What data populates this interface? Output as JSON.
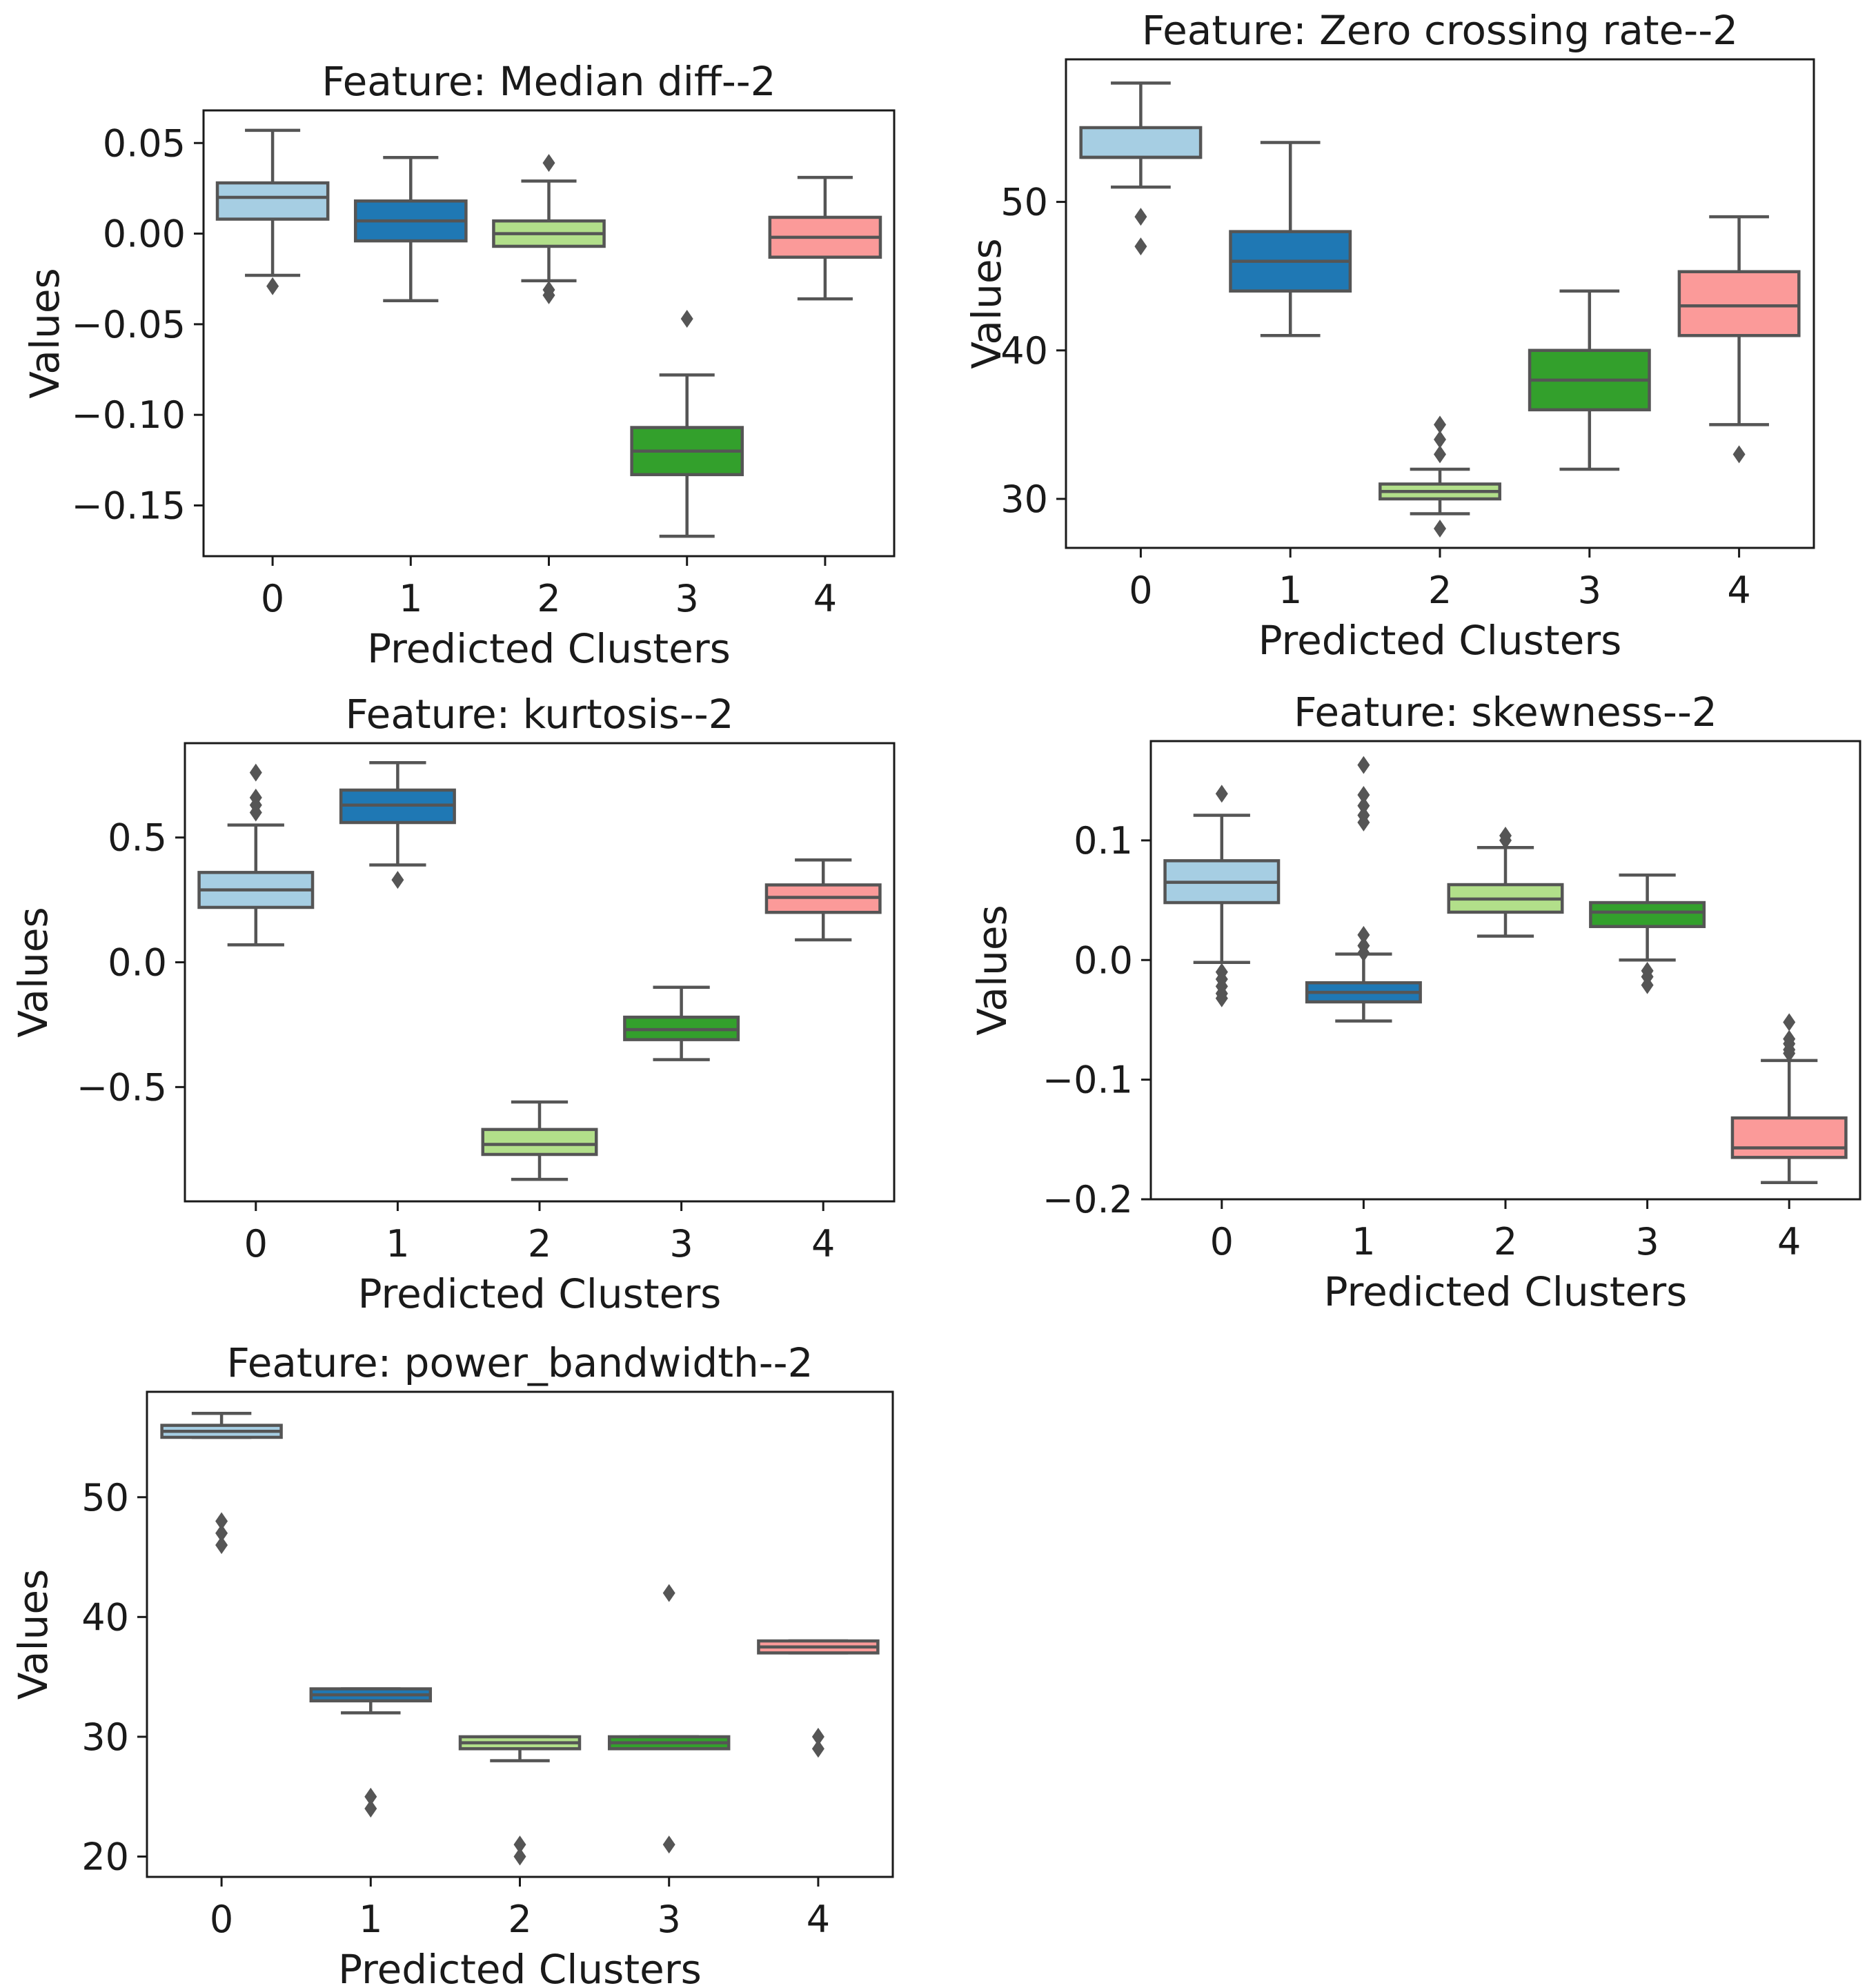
{
  "chart_data": [
    {
      "type": "box",
      "title": "Feature: Median diff--2",
      "xlabel": "Predicted Clusters",
      "ylabel": "Values",
      "categories": [
        "0",
        "1",
        "2",
        "3",
        "4"
      ],
      "yticks": [
        0.05,
        0.0,
        -0.05,
        -0.1,
        -0.15
      ],
      "ytick_labels": [
        "0.05",
        "0.00",
        "−0.05",
        "−0.10",
        "−0.15"
      ],
      "ylim": [
        -0.178,
        0.068
      ],
      "boxes": [
        {
          "category": "0",
          "whisker_low": -0.023,
          "q1": 0.008,
          "median": 0.02,
          "q3": 0.028,
          "whisker_high": 0.057,
          "outliers": [
            -0.029
          ]
        },
        {
          "category": "1",
          "whisker_low": -0.037,
          "q1": -0.004,
          "median": 0.007,
          "q3": 0.018,
          "whisker_high": 0.042,
          "outliers": []
        },
        {
          "category": "2",
          "whisker_low": -0.026,
          "q1": -0.007,
          "median": 0.0,
          "q3": 0.007,
          "whisker_high": 0.029,
          "outliers": [
            0.039,
            -0.031,
            -0.034
          ]
        },
        {
          "category": "3",
          "whisker_low": -0.167,
          "q1": -0.133,
          "median": -0.12,
          "q3": -0.107,
          "whisker_high": -0.078,
          "outliers": [
            -0.047
          ]
        },
        {
          "category": "4",
          "whisker_low": -0.036,
          "q1": -0.013,
          "median": -0.002,
          "q3": 0.009,
          "whisker_high": 0.031,
          "outliers": []
        }
      ]
    },
    {
      "type": "box",
      "title": "Feature: Zero crossing rate--2",
      "xlabel": "Predicted Clusters",
      "ylabel": "Values",
      "categories": [
        "0",
        "1",
        "2",
        "3",
        "4"
      ],
      "yticks": [
        50,
        40,
        30
      ],
      "ytick_labels": [
        "50",
        "40",
        "30"
      ],
      "ylim": [
        26.7,
        59.6
      ],
      "boxes": [
        {
          "category": "0",
          "whisker_low": 51,
          "q1": 53,
          "median": 53,
          "q3": 55,
          "whisker_high": 58,
          "outliers": [
            49,
            47
          ]
        },
        {
          "category": "1",
          "whisker_low": 41,
          "q1": 44,
          "median": 46,
          "q3": 48,
          "whisker_high": 54,
          "outliers": []
        },
        {
          "category": "2",
          "whisker_low": 29,
          "q1": 30,
          "median": 30.5,
          "q3": 31,
          "whisker_high": 32,
          "outliers": [
            35,
            34,
            33,
            28
          ]
        },
        {
          "category": "3",
          "whisker_low": 32,
          "q1": 36,
          "median": 38,
          "q3": 40,
          "whisker_high": 44,
          "outliers": []
        },
        {
          "category": "4",
          "whisker_low": 35,
          "q1": 41,
          "median": 43,
          "q3": 45.3,
          "whisker_high": 49,
          "outliers": [
            33
          ]
        }
      ]
    },
    {
      "type": "box",
      "title": "Feature: kurtosis--2",
      "xlabel": "Predicted Clusters",
      "ylabel": "Values",
      "categories": [
        "0",
        "1",
        "2",
        "3",
        "4"
      ],
      "yticks": [
        0.5,
        0.0,
        -0.5
      ],
      "ytick_labels": [
        "0.5",
        "0.0",
        "−0.5"
      ],
      "ylim": [
        -0.958,
        0.878
      ],
      "boxes": [
        {
          "category": "0",
          "whisker_low": 0.07,
          "q1": 0.22,
          "median": 0.29,
          "q3": 0.36,
          "whisker_high": 0.55,
          "outliers": [
            0.6,
            0.63,
            0.66,
            0.76
          ]
        },
        {
          "category": "1",
          "whisker_low": 0.39,
          "q1": 0.56,
          "median": 0.63,
          "q3": 0.69,
          "whisker_high": 0.8,
          "outliers": [
            0.33
          ]
        },
        {
          "category": "2",
          "whisker_low": -0.87,
          "q1": -0.77,
          "median": -0.73,
          "q3": -0.67,
          "whisker_high": -0.56,
          "outliers": []
        },
        {
          "category": "3",
          "whisker_low": -0.39,
          "q1": -0.31,
          "median": -0.27,
          "q3": -0.22,
          "whisker_high": -0.1,
          "outliers": []
        },
        {
          "category": "4",
          "whisker_low": 0.09,
          "q1": 0.2,
          "median": 0.26,
          "q3": 0.31,
          "whisker_high": 0.41,
          "outliers": []
        }
      ]
    },
    {
      "type": "box",
      "title": "Feature: skewness--2",
      "xlabel": "Predicted Clusters",
      "ylabel": "Values",
      "categories": [
        "0",
        "1",
        "2",
        "3",
        "4"
      ],
      "yticks": [
        0.1,
        0.0,
        -0.1,
        -0.2
      ],
      "ytick_labels": [
        "0.1",
        "0.0",
        "−0.1",
        "−0.2"
      ],
      "ylim": [
        -0.2,
        0.183
      ],
      "boxes": [
        {
          "category": "0",
          "whisker_low": -0.002,
          "q1": 0.048,
          "median": 0.065,
          "q3": 0.083,
          "whisker_high": 0.121,
          "outliers": [
            0.139,
            -0.01,
            -0.016,
            -0.022,
            -0.028,
            -0.032
          ]
        },
        {
          "category": "1",
          "whisker_low": -0.051,
          "q1": -0.035,
          "median": -0.027,
          "q3": -0.019,
          "whisker_high": 0.005,
          "outliers": [
            0.163,
            0.138,
            0.129,
            0.121,
            0.115,
            0.021,
            0.012,
            0.006
          ]
        },
        {
          "category": "2",
          "whisker_low": 0.02,
          "q1": 0.04,
          "median": 0.051,
          "q3": 0.063,
          "whisker_high": 0.094,
          "outliers": [
            0.104,
            0.1
          ]
        },
        {
          "category": "3",
          "whisker_low": 0.0,
          "q1": 0.028,
          "median": 0.04,
          "q3": 0.048,
          "whisker_high": 0.071,
          "outliers": [
            -0.009,
            -0.014,
            -0.021
          ]
        },
        {
          "category": "4",
          "whisker_low": -0.186,
          "q1": -0.165,
          "median": -0.157,
          "q3": -0.132,
          "whisker_high": -0.084,
          "outliers": [
            -0.052,
            -0.066,
            -0.07,
            -0.075,
            -0.078
          ]
        }
      ]
    },
    {
      "type": "box",
      "title": "Feature: power_bandwidth--2",
      "xlabel": "Predicted Clusters",
      "ylabel": "Values",
      "categories": [
        "0",
        "1",
        "2",
        "3",
        "4"
      ],
      "yticks": [
        50,
        40,
        30,
        20
      ],
      "ytick_labels": [
        "50",
        "40",
        "30",
        "20"
      ],
      "ylim": [
        18.3,
        58.8
      ],
      "boxes": [
        {
          "category": "0",
          "whisker_low": 55,
          "q1": 55,
          "median": 55.5,
          "q3": 56,
          "whisker_high": 57,
          "outliers": [
            48,
            47,
            46
          ]
        },
        {
          "category": "1",
          "whisker_low": 32,
          "q1": 33,
          "median": 33.5,
          "q3": 34,
          "whisker_high": 34,
          "outliers": [
            25,
            24
          ]
        },
        {
          "category": "2",
          "whisker_low": 28,
          "q1": 29,
          "median": 29.5,
          "q3": 30,
          "whisker_high": 30,
          "outliers": [
            21,
            20
          ]
        },
        {
          "category": "3",
          "whisker_low": 29,
          "q1": 29,
          "median": 29.5,
          "q3": 30,
          "whisker_high": 30,
          "outliers": [
            42,
            21
          ]
        },
        {
          "category": "4",
          "whisker_low": 37,
          "q1": 37,
          "median": 37.5,
          "q3": 38,
          "whisker_high": 38,
          "outliers": [
            30,
            29
          ]
        }
      ]
    }
  ],
  "colors": {
    "boxes": [
      "#a6cee3",
      "#1f78b4",
      "#b2df8a",
      "#33a02c",
      "#fb9a99"
    ],
    "line": "#555555",
    "frame": "#1a1a1a",
    "text": "#1a1a1a"
  }
}
